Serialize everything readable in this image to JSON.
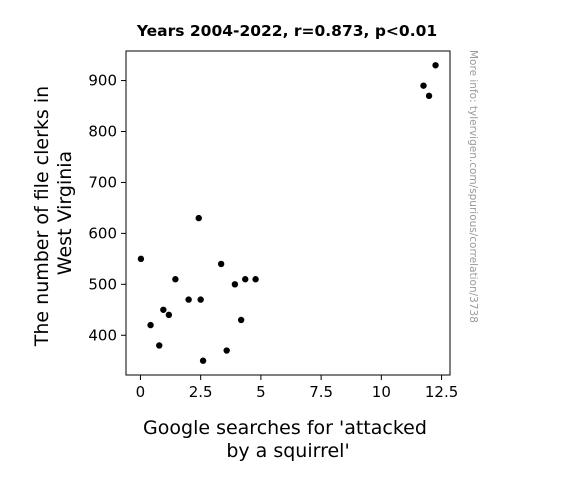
{
  "chart_data": {
    "type": "scatter",
    "title": "Years 2004-2022, r=0.873, p<0.01",
    "xlabel": [
      "Google searches for 'attacked",
      "by a squirrel'"
    ],
    "ylabel": [
      "The number of file clerks in",
      "West Virginia"
    ],
    "xlim": [
      -0.6,
      12.85
    ],
    "ylim": [
      322,
      958
    ],
    "xticks": [
      0,
      2.5,
      5,
      7.5,
      10,
      12.5
    ],
    "xtick_labels": [
      "0",
      "2.5",
      "5",
      "7.5",
      "10",
      "12.5"
    ],
    "yticks": [
      400,
      500,
      600,
      700,
      800,
      900
    ],
    "ytick_labels": [
      "400",
      "500",
      "600",
      "700",
      "800",
      "900"
    ],
    "grid": false,
    "point_color": "#000000",
    "points": [
      {
        "x": 0.02,
        "y": 550
      },
      {
        "x": 0.42,
        "y": 420
      },
      {
        "x": 0.78,
        "y": 380
      },
      {
        "x": 0.95,
        "y": 450
      },
      {
        "x": 1.18,
        "y": 440
      },
      {
        "x": 1.45,
        "y": 510
      },
      {
        "x": 2.0,
        "y": 470
      },
      {
        "x": 2.42,
        "y": 630
      },
      {
        "x": 2.5,
        "y": 470
      },
      {
        "x": 2.6,
        "y": 350
      },
      {
        "x": 3.35,
        "y": 540
      },
      {
        "x": 3.58,
        "y": 370
      },
      {
        "x": 3.92,
        "y": 500
      },
      {
        "x": 4.18,
        "y": 430
      },
      {
        "x": 4.35,
        "y": 510
      },
      {
        "x": 4.78,
        "y": 510
      },
      {
        "x": 11.75,
        "y": 890
      },
      {
        "x": 11.98,
        "y": 870
      },
      {
        "x": 12.25,
        "y": 930
      }
    ]
  },
  "watermark": "More info: tylervigen.com/spurious/correlation/3738"
}
